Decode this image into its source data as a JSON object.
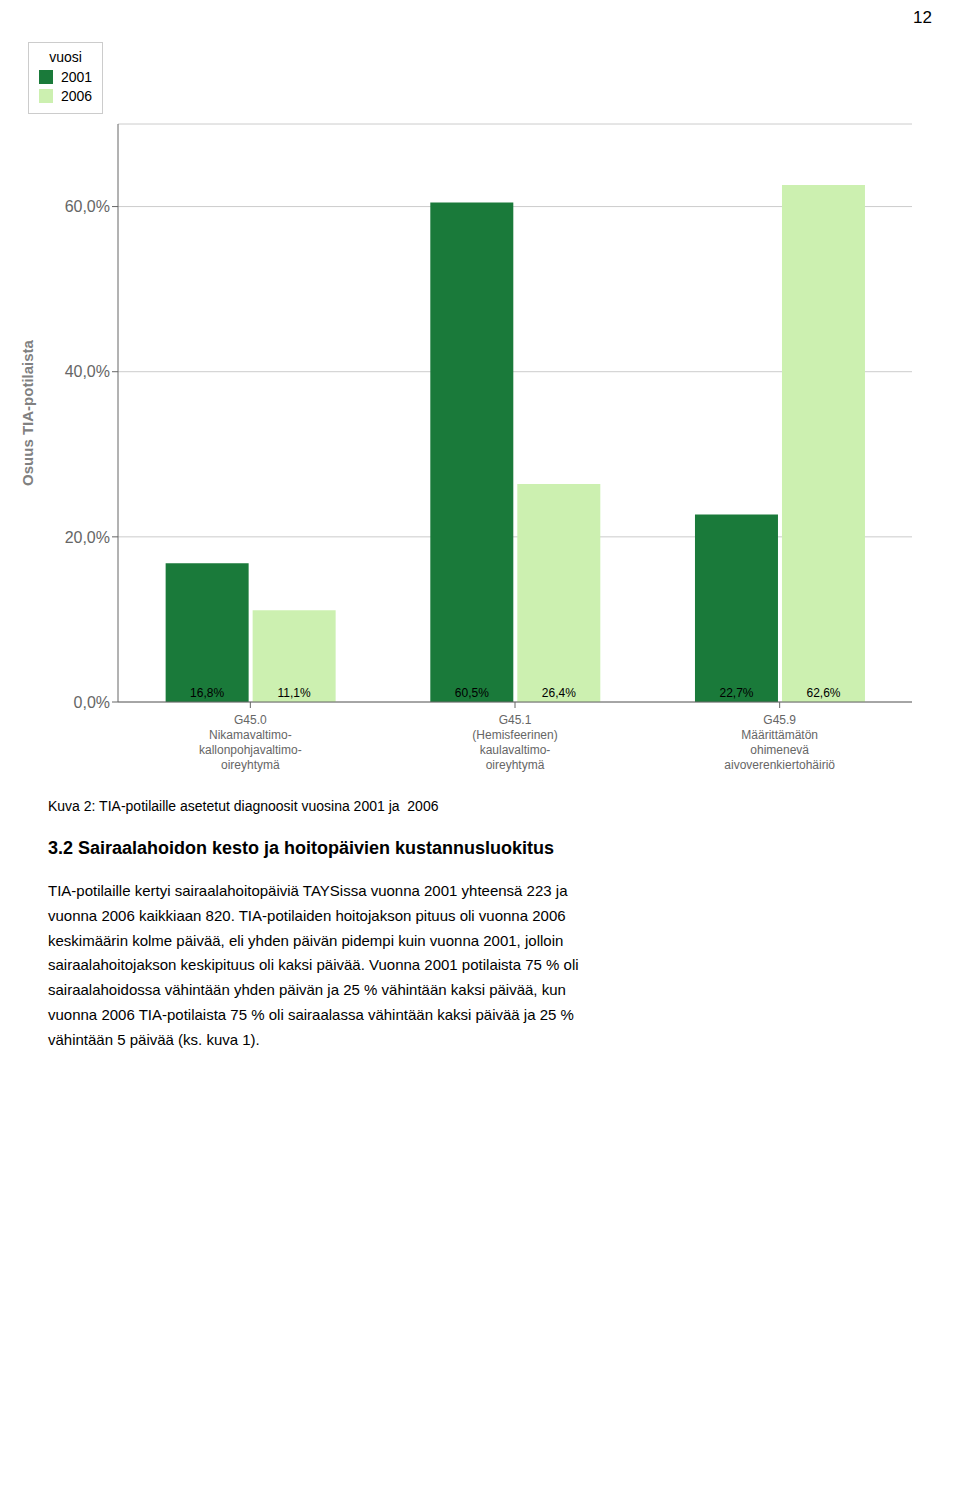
{
  "chart_data": {
    "type": "bar",
    "categories": [
      "G45.0\nNikamavaltimo-\nkallonpohjavaltimo-\noireyhtymä",
      "G45.1\n(Hemisfeerinen)\nkaulavaltimo-\noireyhtymä",
      "G45.9\nMäärittämätön\nohimenevä\naivoverenkiertohäiriö"
    ],
    "series": [
      {
        "name": "2001",
        "color": "#1a7a3a",
        "values": [
          16.8,
          60.5,
          22.7
        ],
        "value_labels": [
          "16,8%",
          "60,5%",
          "22,7%"
        ]
      },
      {
        "name": "2006",
        "color": "#ccf0b0",
        "values": [
          11.1,
          26.4,
          62.6
        ],
        "value_labels": [
          "11,1%",
          "26,4%",
          "62,6%"
        ]
      }
    ],
    "ylabel": "Osuus TIA-potilaista",
    "ylim": [
      0,
      70
    ],
    "yticks": [
      {
        "value": 0,
        "label": "0,0%"
      },
      {
        "value": 20,
        "label": "20,0%"
      },
      {
        "value": 40,
        "label": "40,0%"
      },
      {
        "value": 60,
        "label": "60,0%"
      }
    ],
    "grid": true,
    "legend": "upper right",
    "legend_title": "vuosi",
    "data_labels": true,
    "annotations": [
      "12",
      "Kuva 2: TIA-potilaille asetetut diagnoosit vuosina 2001 ja  2006",
      "3.2 Sairaalahoidon kesto ja hoitopäivien kustannusluokitus",
      "TIA-potilaille kertyi sairaalahoitopäiviä TAYSissa vuonna 2001 yhteensä 223 ja\nvuonna 2006 kaikkiaan 820. TIA-potilaiden hoitojakson pituus oli vuonna 2006\nkeskimäärin kolme päivää, eli yhden päivän pidempi kuin vuonna 2001, jolloin\nsairaalahoitojakson keskipituus oli kaksi päivää. Vuonna 2001 potilaista 75 % oli\nsairaalahoidossa vähintään yhden päivän ja 25 % vähintään kaksi päivää, kun\nvuonna 2006 TIA-potilaista 75 % oli sairaalassa vähintään kaksi päivää ja 25 %\nvähintään 5 päivää (ks. kuva 1)."
    ]
  }
}
